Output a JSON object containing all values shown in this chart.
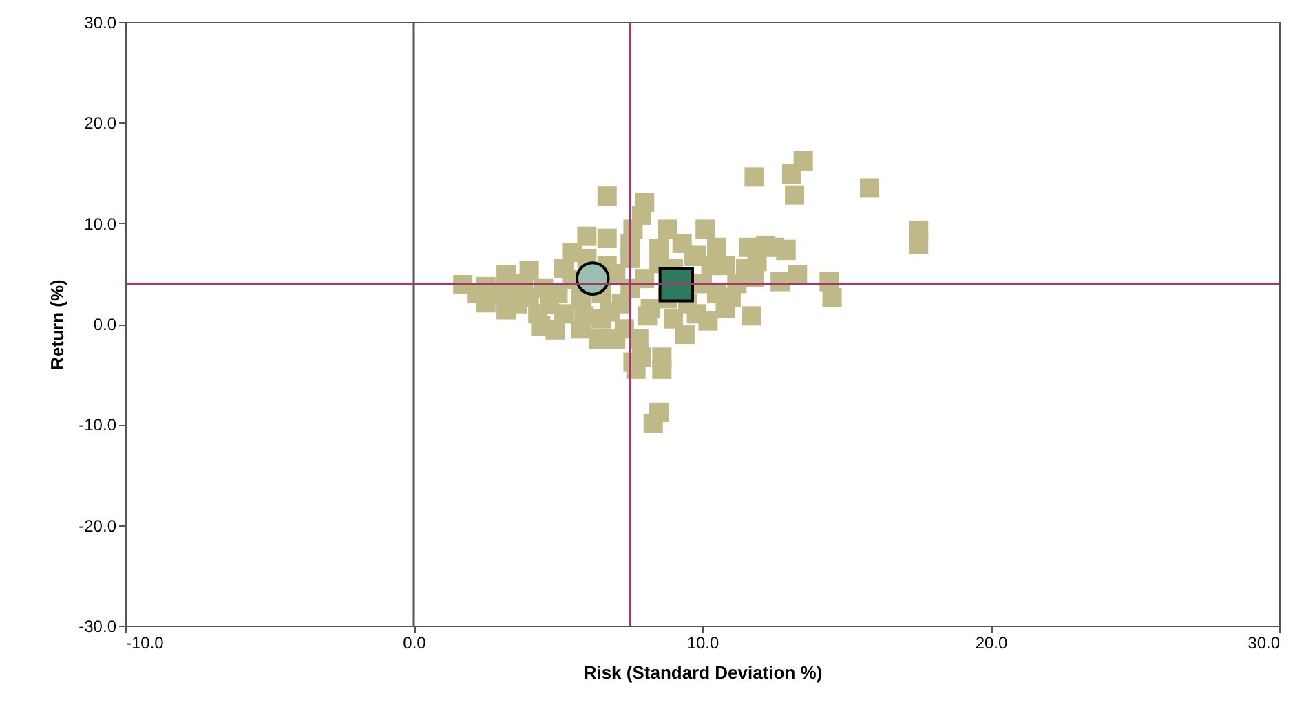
{
  "chart_data": {
    "type": "scatter",
    "xlabel": "Risk (Standard Deviation %)",
    "ylabel": "Return (%)",
    "xlim": [
      -10,
      30
    ],
    "ylim": [
      -30,
      30
    ],
    "xticks": [
      {
        "value": -10,
        "label": "-10.0"
      },
      {
        "value": 0,
        "label": "0.0"
      },
      {
        "value": 10,
        "label": "10.0"
      },
      {
        "value": 20,
        "label": "20.0"
      },
      {
        "value": 30,
        "label": "30.0"
      }
    ],
    "yticks": [
      {
        "value": -30,
        "label": "-30.0"
      },
      {
        "value": -20,
        "label": "-20.0"
      },
      {
        "value": -10,
        "label": "-10.0"
      },
      {
        "value": 0,
        "label": "0.0"
      },
      {
        "value": 10,
        "label": "10.0"
      },
      {
        "value": 20,
        "label": "20.0"
      },
      {
        "value": 30,
        "label": "30.0"
      }
    ],
    "marker": "square",
    "ref_lines": [
      {
        "axis": "x",
        "value": 0,
        "color": "#555555"
      },
      {
        "axis": "x",
        "value": 7.5,
        "color": "#9e3b6c"
      },
      {
        "axis": "y",
        "value": 4,
        "color": "#9e3b6c"
      }
    ],
    "series": [
      {
        "color": "#bfb987",
        "x": [
          3.0,
          3.8,
          4.5,
          5.2,
          5.2,
          5.8,
          6.0,
          6.5,
          7.0,
          7.2,
          7.5,
          8.0,
          8.2,
          8.5,
          9.0,
          9.0,
          9.3,
          9.8,
          10.5,
          10.8,
          11.2,
          11.5,
          8.8,
          4.3,
          3.6,
          2.2,
          5.8,
          7.3,
          9.8,
          7.7,
          8.6,
          1.7,
          2.5,
          2.5,
          3.2,
          3.2,
          4.0,
          4.0,
          4.4,
          4.9,
          4.7,
          5.5,
          6.0,
          6.7,
          5.5,
          5.9,
          6.4,
          7.0,
          6.8,
          6.7,
          7.6,
          8.6,
          8.0,
          7.6,
          8.8,
          6.7,
          13.5,
          13.1,
          13.2,
          11.8,
          15.8,
          17.5,
          17.5,
          8.5,
          8.3,
          7.9,
          10.1,
          10.5,
          11.6,
          12.5,
          12.9,
          11.8,
          12.7,
          13.3,
          14.4,
          14.5,
          10.3,
          11.0,
          11.7,
          10.2,
          9.4,
          8.1,
          7.8,
          7.9,
          10.8,
          9.7,
          11.9,
          12.2,
          12.9,
          6.5,
          7.5,
          7.5,
          9.5,
          10.0,
          8.5,
          5.0,
          3.5
        ],
        "values": [
          3.0,
          4.0,
          3.5,
          5.5,
          1.0,
          2.5,
          6.5,
          0.5,
          5.0,
          2.0,
          8.0,
          4.5,
          1.5,
          7.5,
          5.5,
          0.5,
          8.0,
          1.0,
          3.0,
          1.5,
          4.0,
          5.5,
          2.5,
          1.0,
          2.0,
          3.0,
          -0.5,
          -0.5,
          6.8,
          -4.5,
          -4.5,
          3.9,
          3.7,
          2.1,
          4.9,
          1.4,
          5.3,
          2.6,
          -0.2,
          -0.6,
          1.9,
          7.1,
          8.7,
          8.5,
          4.4,
          0.8,
          -1.5,
          -1.5,
          1.2,
          5.8,
          -3.8,
          -3.3,
          12.1,
          9.4,
          9.4,
          12.7,
          16.2,
          14.9,
          12.8,
          14.6,
          13.5,
          9.3,
          7.9,
          -8.8,
          -9.9,
          10.8,
          9.4,
          7.6,
          7.6,
          7.6,
          7.3,
          4.6,
          4.2,
          4.9,
          4.2,
          2.6,
          5.8,
          2.6,
          0.8,
          0.3,
          -1.1,
          0.8,
          -1.5,
          -3.3,
          5.8,
          6.7,
          6.2,
          7.8,
          7.4,
          3.0,
          3.5,
          6.5,
          2.0,
          4.0,
          6.0,
          3.0,
          3.0
        ]
      },
      {
        "color": "#98bfb0",
        "marker": "circle",
        "x": [
          6.2
        ],
        "values": [
          4.5
        ]
      },
      {
        "color": "#2e7a5c",
        "x": [
          9.1
        ],
        "values": [
          3.9
        ]
      }
    ]
  }
}
